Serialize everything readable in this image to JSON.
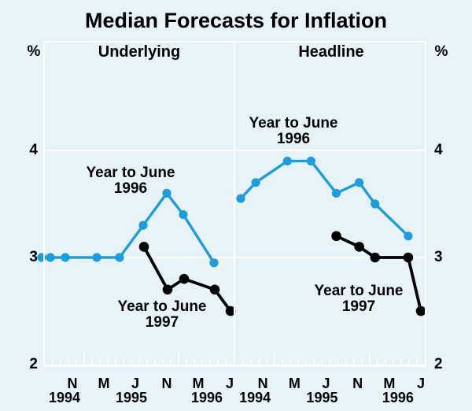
{
  "title": "Median Forecasts for Inflation",
  "colors": {
    "background": "#e8f3f8",
    "series_blue": "#1c9ede",
    "series_black": "#000000",
    "grid_white": "#ffffff",
    "text": "#000000"
  },
  "y_axis": {
    "unit_left": "%",
    "unit_right": "%",
    "ticks": [
      {
        "label": "2",
        "value": 2
      },
      {
        "label": "3",
        "value": 3
      },
      {
        "label": "4",
        "value": 4
      }
    ]
  },
  "x_axis": {
    "months_span": 24,
    "start": "Aug-1994",
    "end": "Aug-1996",
    "month_labels": [
      {
        "label": "N",
        "m": 3.5
      },
      {
        "label": "M",
        "m": 7.5
      },
      {
        "label": "J",
        "m": 11.5
      },
      {
        "label": "N",
        "m": 15.5
      },
      {
        "label": "M",
        "m": 19.5
      },
      {
        "label": "J",
        "m": 23.5
      }
    ],
    "year_labels": [
      {
        "label": "1994",
        "m": 2.5
      },
      {
        "label": "1995",
        "m": 11
      },
      {
        "label": "1996",
        "m": 20.6
      }
    ],
    "tall_tick_months": [
      5,
      17
    ]
  },
  "chart_data": {
    "type": "line",
    "title": "Median Forecasts for Inflation",
    "ylabel": "%",
    "ylim": [
      2,
      5
    ],
    "grid_values": [
      3,
      4
    ],
    "legend_position": "inline-annotations",
    "panels": [
      {
        "title": "Underlying",
        "annotations": [
          {
            "line1": "Year to June",
            "line2": "1996"
          },
          {
            "line1": "Year to June",
            "line2": "1997"
          }
        ],
        "series": [
          {
            "name": "Year to June 1996",
            "color": "#1c9ede",
            "points": [
              {
                "date": "Jul-94",
                "m": -0.4,
                "v": 3.0
              },
              {
                "date": "Aug-94",
                "m": 0.7,
                "v": 3.0
              },
              {
                "date": "Oct-94",
                "m": 2.6,
                "v": 3.0
              },
              {
                "date": "Feb-95",
                "m": 6.6,
                "v": 3.0
              },
              {
                "date": "May-95",
                "m": 9.5,
                "v": 3.0
              },
              {
                "date": "Aug-95",
                "m": 12.5,
                "v": 3.3
              },
              {
                "date": "Nov-95",
                "m": 15.5,
                "v": 3.6
              },
              {
                "date": "Jan-96",
                "m": 17.6,
                "v": 3.4
              },
              {
                "date": "May-96",
                "m": 21.5,
                "v": 2.95
              }
            ]
          },
          {
            "name": "Year to June 1997",
            "color": "#000000",
            "points": [
              {
                "date": "Aug-95",
                "m": 12.6,
                "v": 3.1
              },
              {
                "date": "Nov-95",
                "m": 15.6,
                "v": 2.7
              },
              {
                "date": "Feb-96",
                "m": 17.7,
                "v": 2.8
              },
              {
                "date": "May-96",
                "m": 21.6,
                "v": 2.7
              },
              {
                "date": "Jul-96",
                "m": 23.6,
                "v": 2.5
              }
            ]
          }
        ]
      },
      {
        "title": "Headline",
        "annotations": [
          {
            "line1": "Year to June",
            "line2": "1996"
          },
          {
            "line1": "Year to June",
            "line2": "1997"
          }
        ],
        "series": [
          {
            "name": "Year to June 1996",
            "color": "#1c9ede",
            "points": [
              {
                "date": "Aug-94",
                "m": 0.7,
                "v": 3.55
              },
              {
                "date": "Oct-94",
                "m": 2.6,
                "v": 3.7
              },
              {
                "date": "Feb-95",
                "m": 6.6,
                "v": 3.9
              },
              {
                "date": "May-95",
                "m": 9.6,
                "v": 3.9
              },
              {
                "date": "Aug-95",
                "m": 12.8,
                "v": 3.6
              },
              {
                "date": "Nov-95",
                "m": 15.7,
                "v": 3.7
              },
              {
                "date": "Feb-96",
                "m": 17.7,
                "v": 3.5
              },
              {
                "date": "May-96",
                "m": 21.9,
                "v": 3.2
              }
            ]
          },
          {
            "name": "Year to June 1997",
            "color": "#000000",
            "points": [
              {
                "date": "Aug-95",
                "m": 12.8,
                "v": 3.2
              },
              {
                "date": "Nov-95",
                "m": 15.7,
                "v": 3.1
              },
              {
                "date": "Feb-96",
                "m": 17.7,
                "v": 3.0
              },
              {
                "date": "May-96",
                "m": 21.9,
                "v": 3.0
              },
              {
                "date": "Jul-96",
                "m": 23.5,
                "v": 2.5
              }
            ]
          }
        ]
      }
    ]
  }
}
